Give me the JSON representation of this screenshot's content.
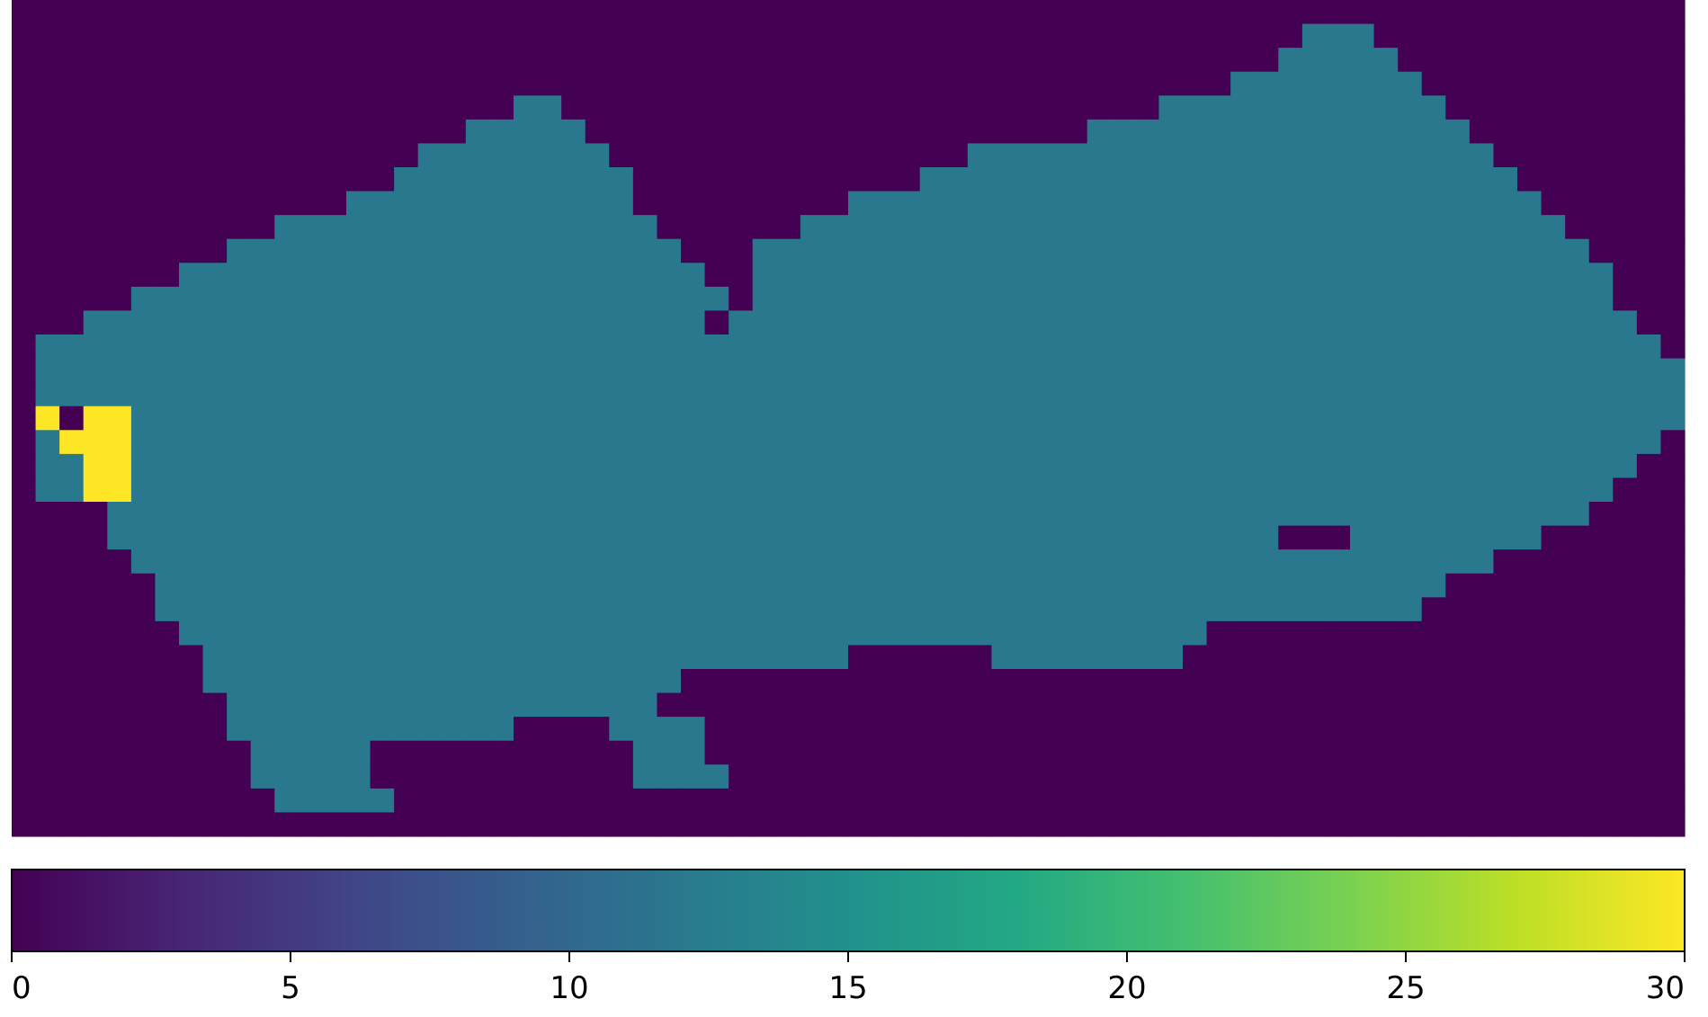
{
  "chart_data": {
    "type": "heatmap",
    "title": "",
    "xlabel": "",
    "ylabel": "",
    "grid_shape": [
      35,
      70
    ],
    "value_range": [
      0,
      30
    ],
    "colormap": "viridis",
    "legend": "colorbar-bottom",
    "grid": false,
    "colorbar": {
      "ticks": [
        0,
        5,
        10,
        15,
        20,
        25,
        30
      ],
      "tick_labels": [
        "0",
        "5",
        "10",
        "15",
        "20",
        "25",
        "30"
      ]
    },
    "region_values": {
      "background": 0,
      "body": 12,
      "highlight": 30
    },
    "body_spans": [
      [],
      [
        [
          54,
          56
        ]
      ],
      [
        [
          53,
          57
        ]
      ],
      [
        [
          51,
          58
        ]
      ],
      [
        [
          21,
          22
        ],
        [
          48,
          59
        ]
      ],
      [
        [
          19,
          23
        ],
        [
          45,
          60
        ]
      ],
      [
        [
          17,
          24
        ],
        [
          40,
          61
        ]
      ],
      [
        [
          16,
          25
        ],
        [
          38,
          62
        ]
      ],
      [
        [
          14,
          25
        ],
        [
          35,
          63
        ]
      ],
      [
        [
          11,
          26
        ],
        [
          33,
          64
        ]
      ],
      [
        [
          9,
          27
        ],
        [
          31,
          65
        ]
      ],
      [
        [
          7,
          28
        ],
        [
          31,
          66
        ]
      ],
      [
        [
          5,
          29
        ],
        [
          31,
          66
        ]
      ],
      [
        [
          3,
          29
        ],
        [
          30,
          67
        ]
      ],
      [
        [
          1,
          68
        ]
      ],
      [
        [
          1,
          69
        ]
      ],
      [
        [
          1,
          69
        ]
      ],
      [
        [
          1,
          69
        ]
      ],
      [
        [
          1,
          68
        ]
      ],
      [
        [
          1,
          67
        ]
      ],
      [
        [
          1,
          66
        ]
      ],
      [
        [
          4,
          65
        ]
      ],
      [
        [
          4,
          63
        ]
      ],
      [
        [
          5,
          61
        ]
      ],
      [
        [
          6,
          59
        ]
      ],
      [
        [
          6,
          58
        ]
      ],
      [
        [
          7,
          49
        ]
      ],
      [
        [
          8,
          34
        ],
        [
          41,
          48
        ]
      ],
      [
        [
          8,
          27
        ]
      ],
      [
        [
          9,
          26
        ]
      ],
      [
        [
          9,
          20
        ],
        [
          25,
          28
        ]
      ],
      [
        [
          10,
          14
        ],
        [
          26,
          28
        ]
      ],
      [
        [
          10,
          14
        ],
        [
          26,
          29
        ]
      ],
      [
        [
          11,
          15
        ]
      ],
      []
    ],
    "bg_cells": [
      [
        13,
        29
      ],
      [
        17,
        2
      ],
      [
        18,
        2
      ],
      [
        22,
        53
      ],
      [
        22,
        54
      ],
      [
        22,
        55
      ]
    ],
    "highlight_cells": [
      [
        17,
        1
      ],
      [
        17,
        3
      ],
      [
        17,
        4
      ],
      [
        18,
        3
      ],
      [
        18,
        4
      ],
      [
        18,
        2
      ],
      [
        19,
        3
      ],
      [
        19,
        4
      ],
      [
        20,
        3
      ],
      [
        20,
        4
      ]
    ]
  }
}
